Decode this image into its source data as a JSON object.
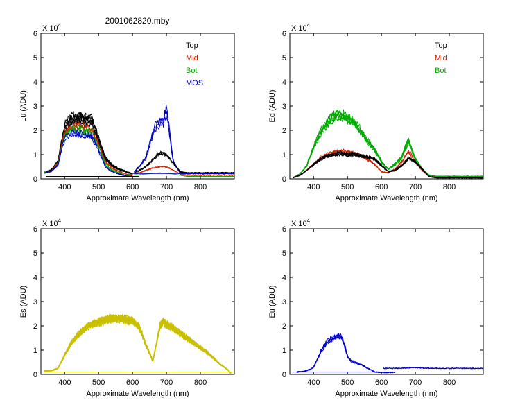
{
  "figure_title": "2001062820.mby",
  "chart_data": [
    {
      "type": "line",
      "panel": "Lu",
      "ylabel": "Lu (ADU)",
      "xlabel": "Approximate Wavelength (nm)",
      "exponent_label": "X 10",
      "exponent_power": "4",
      "xlim": [
        330,
        900
      ],
      "ylim": [
        0,
        6
      ],
      "xticks": [
        "400",
        "500",
        "600",
        "700",
        "800"
      ],
      "yticks": [
        "0",
        "1",
        "2",
        "3",
        "4",
        "5",
        "6"
      ],
      "legend": [
        {
          "label": "Top",
          "color": "#000000"
        },
        {
          "label": "Mid",
          "color": "#cc2200"
        },
        {
          "label": "Bot",
          "color": "#00aa00"
        },
        {
          "label": "MOS",
          "color": "#0000cc"
        }
      ],
      "legend_position": "top-right",
      "series": [
        {
          "name": "Top",
          "color": "#000000",
          "copies": 6,
          "spread": 0.12,
          "x": [
            340,
            360,
            380,
            400,
            420,
            440,
            460,
            480,
            500,
            520,
            540,
            560,
            580,
            600
          ],
          "y": [
            0.25,
            0.35,
            0.7,
            2.1,
            2.45,
            2.5,
            2.45,
            2.4,
            1.6,
            0.85,
            0.55,
            0.4,
            0.3,
            0.2
          ]
        },
        {
          "name": "Mid",
          "color": "#cc2200",
          "copies": 3,
          "spread": 0.05,
          "x": [
            340,
            360,
            380,
            400,
            420,
            440,
            460,
            480,
            500,
            520,
            540,
            560,
            580,
            600
          ],
          "y": [
            0.25,
            0.3,
            0.65,
            1.9,
            2.1,
            2.2,
            2.1,
            2.0,
            1.4,
            0.7,
            0.45,
            0.3,
            0.2,
            0.15
          ]
        },
        {
          "name": "Bot",
          "color": "#00aa00",
          "copies": 2,
          "spread": 0.05,
          "x": [
            340,
            360,
            380,
            400,
            420,
            440,
            460,
            480,
            500,
            520,
            540,
            560,
            580,
            600
          ],
          "y": [
            0.25,
            0.3,
            0.6,
            1.75,
            2.0,
            2.05,
            1.95,
            1.9,
            1.3,
            0.6,
            0.35,
            0.25,
            0.15,
            0.1
          ]
        },
        {
          "name": "MOS",
          "color": "#0000cc",
          "copies": 2,
          "spread": 0.05,
          "x": [
            340,
            360,
            380,
            400,
            420,
            440,
            460,
            480,
            500,
            520,
            540,
            560,
            580,
            600
          ],
          "y": [
            0.25,
            0.3,
            0.55,
            1.7,
            1.85,
            1.85,
            1.8,
            1.75,
            1.2,
            0.5,
            0.3,
            0.2,
            0.12,
            0.1
          ]
        },
        {
          "name": "MOS",
          "color": "#0000cc",
          "copies": 3,
          "spread": 0.08,
          "x": [
            605,
            620,
            640,
            660,
            670,
            680,
            690,
            700,
            710,
            720,
            740,
            760,
            800,
            900
          ],
          "y": [
            0.3,
            0.5,
            0.9,
            1.9,
            2.2,
            2.3,
            2.3,
            2.85,
            1.8,
            0.7,
            0.25,
            0.22,
            0.22,
            0.22
          ]
        },
        {
          "name": "Top",
          "color": "#000000",
          "copies": 3,
          "spread": 0.05,
          "x": [
            605,
            620,
            640,
            660,
            680,
            700,
            720,
            740,
            760,
            800,
            900
          ],
          "y": [
            0.25,
            0.35,
            0.5,
            0.8,
            1.05,
            1.0,
            0.65,
            0.3,
            0.25,
            0.25,
            0.25
          ]
        },
        {
          "name": "Mid",
          "color": "#cc2200",
          "copies": 2,
          "spread": 0.04,
          "x": [
            605,
            620,
            640,
            660,
            680,
            700,
            720,
            740,
            760,
            800,
            900
          ],
          "y": [
            0.2,
            0.25,
            0.35,
            0.45,
            0.5,
            0.5,
            0.35,
            0.2,
            0.15,
            0.15,
            0.15
          ]
        },
        {
          "name": "Bot",
          "color": "#00aa00",
          "copies": 1,
          "spread": 0.0,
          "x": [
            605,
            640,
            680,
            720,
            760,
            900
          ],
          "y": [
            0.15,
            0.2,
            0.25,
            0.2,
            0.1,
            0.1
          ]
        },
        {
          "name": "baseline",
          "color": "#000000",
          "copies": 1,
          "spread": 0.0,
          "x": [
            345,
            620
          ],
          "y": [
            0.1,
            0.1
          ]
        },
        {
          "name": "baseline",
          "color": "#0000cc",
          "copies": 1,
          "spread": 0.0,
          "x": [
            600,
            900
          ],
          "y": [
            0.22,
            0.22
          ]
        }
      ]
    },
    {
      "type": "line",
      "panel": "Ed",
      "ylabel": "Ed  (ADU)",
      "xlabel": "Approximate Wavelength (nm)",
      "exponent_label": "X 10",
      "exponent_power": "4",
      "xlim": [
        330,
        900
      ],
      "ylim": [
        0,
        6
      ],
      "xticks": [
        "400",
        "500",
        "600",
        "700",
        "800"
      ],
      "yticks": [
        "0",
        "1",
        "2",
        "3",
        "4",
        "5",
        "6"
      ],
      "legend": [
        {
          "label": "Top",
          "color": "#000000"
        },
        {
          "label": "Mid",
          "color": "#cc2200"
        },
        {
          "label": "Bot",
          "color": "#00aa00"
        }
      ],
      "legend_position": "top-right",
      "series": [
        {
          "name": "Bot",
          "color": "#00aa00",
          "copies": 5,
          "spread": 0.08,
          "x": [
            340,
            360,
            380,
            400,
            420,
            440,
            460,
            480,
            500,
            520,
            540,
            560,
            580,
            600,
            620,
            640,
            660,
            680,
            700,
            720,
            740,
            760,
            800,
            900
          ],
          "y": [
            0.05,
            0.2,
            0.55,
            1.3,
            1.9,
            2.3,
            2.55,
            2.65,
            2.5,
            2.3,
            1.95,
            1.55,
            1.2,
            0.7,
            0.4,
            0.6,
            0.9,
            1.6,
            0.8,
            0.4,
            0.15,
            0.1,
            0.1,
            0.1
          ]
        },
        {
          "name": "Mid",
          "color": "#cc2200",
          "copies": 3,
          "spread": 0.05,
          "x": [
            340,
            360,
            380,
            400,
            420,
            440,
            460,
            480,
            500,
            520,
            540,
            560,
            580,
            600,
            620,
            640,
            660,
            680,
            700,
            720,
            740,
            760,
            800,
            900
          ],
          "y": [
            0.05,
            0.15,
            0.35,
            0.6,
            0.85,
            1.0,
            1.1,
            1.15,
            1.1,
            1.05,
            0.95,
            0.8,
            0.6,
            0.3,
            0.25,
            0.4,
            0.7,
            1.15,
            0.7,
            0.35,
            0.1,
            0.05,
            0.05,
            0.05
          ]
        },
        {
          "name": "Top",
          "color": "#000000",
          "copies": 5,
          "spread": 0.06,
          "x": [
            340,
            360,
            380,
            400,
            420,
            440,
            460,
            480,
            500,
            520,
            540,
            560,
            580,
            600,
            620,
            640,
            660,
            680,
            700,
            720,
            740,
            760,
            800,
            900
          ],
          "y": [
            0.05,
            0.15,
            0.35,
            0.6,
            0.8,
            0.95,
            1.0,
            1.05,
            1.0,
            1.0,
            0.95,
            0.9,
            0.8,
            0.55,
            0.3,
            0.35,
            0.55,
            0.85,
            0.7,
            0.4,
            0.1,
            0.05,
            0.05,
            0.05
          ]
        }
      ]
    },
    {
      "type": "line",
      "panel": "Es",
      "ylabel": "Es  (ADU)",
      "xlabel": "Approximate Wavelength (nm)",
      "exponent_label": "X 10",
      "exponent_power": "4",
      "xlim": [
        330,
        900
      ],
      "ylim": [
        0,
        6
      ],
      "xticks": [
        "400",
        "500",
        "600",
        "700",
        "800"
      ],
      "yticks": [
        "0",
        "1",
        "2",
        "3",
        "4",
        "5",
        "6"
      ],
      "legend": [],
      "series": [
        {
          "name": "Es",
          "color": "#c8c000",
          "copies": 14,
          "spread": 0.055,
          "x": [
            340,
            360,
            380,
            400,
            420,
            440,
            460,
            480,
            500,
            520,
            540,
            560,
            580,
            600,
            620,
            640,
            660,
            680,
            690,
            700,
            720,
            740,
            760,
            780,
            800,
            820,
            840,
            860,
            880,
            890
          ],
          "y": [
            0.15,
            0.15,
            0.25,
            0.8,
            1.3,
            1.65,
            1.9,
            2.05,
            2.15,
            2.25,
            2.3,
            2.3,
            2.25,
            2.2,
            1.95,
            1.2,
            0.55,
            1.95,
            2.2,
            2.05,
            1.9,
            1.7,
            1.5,
            1.3,
            1.1,
            0.9,
            0.65,
            0.4,
            0.2,
            0.05
          ]
        },
        {
          "name": "baseline",
          "color": "#c8c000",
          "copies": 1,
          "spread": 0.0,
          "x": [
            340,
            900
          ],
          "y": [
            0.1,
            0.1
          ]
        }
      ]
    },
    {
      "type": "line",
      "panel": "Eu",
      "ylabel": "Eu  (ADU)",
      "xlabel": "Approximate Wavelength (nm)",
      "exponent_label": "X 10",
      "exponent_power": "4",
      "xlim": [
        330,
        900
      ],
      "ylim": [
        0,
        6
      ],
      "xticks": [
        "400",
        "500",
        "600",
        "700",
        "800"
      ],
      "yticks": [
        "0",
        "1",
        "2",
        "3",
        "4",
        "5",
        "6"
      ],
      "legend": [],
      "series": [
        {
          "name": "Eu",
          "color": "#0000cc",
          "copies": 4,
          "spread": 0.07,
          "x": [
            350,
            370,
            390,
            400,
            420,
            440,
            460,
            470,
            480,
            490,
            500,
            510,
            520,
            540,
            560,
            580,
            600,
            620,
            640
          ],
          "y": [
            0.1,
            0.12,
            0.2,
            0.3,
            0.9,
            1.35,
            1.5,
            1.6,
            1.55,
            1.25,
            0.75,
            0.55,
            0.5,
            0.4,
            0.25,
            0.1,
            0.08,
            0.08,
            0.08
          ]
        },
        {
          "name": "baseline",
          "color": "#0000cc",
          "copies": 1,
          "spread": 0.0,
          "x": [
            340,
            640
          ],
          "y": [
            0.1,
            0.1
          ]
        },
        {
          "name": "baseline",
          "color": "#0000cc",
          "copies": 2,
          "spread": 0.03,
          "x": [
            605,
            650,
            700,
            750,
            800,
            900
          ],
          "y": [
            0.25,
            0.25,
            0.28,
            0.25,
            0.25,
            0.25
          ]
        }
      ]
    }
  ]
}
